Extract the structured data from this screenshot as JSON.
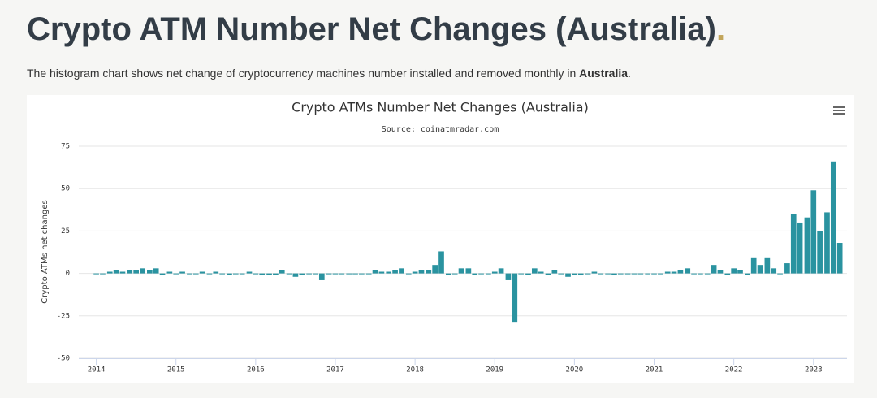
{
  "header": {
    "title": "Crypto ATM Number Net Changes (Australia)",
    "title_dot": ".",
    "description": [
      "The histogram chart shows net change of cryptocurrency machines number installed and removed monthly in ",
      "Australia",
      "."
    ]
  },
  "chart_data": {
    "type": "bar",
    "title": "Crypto ATMs Number Net Changes (Australia)",
    "subtitle": "Source: coinatmradar.com",
    "y_label": "Crypto ATMs net changes",
    "color": "#2a93a0",
    "grid": true,
    "xlim": [
      2013.78,
      2023.42
    ],
    "xticks": [
      2014,
      2015,
      2016,
      2017,
      2018,
      2019,
      2020,
      2021,
      2022,
      2023
    ],
    "ylim": [
      -50,
      75
    ],
    "yticks": [
      -50,
      -25,
      0,
      25,
      50,
      75
    ],
    "x": [
      2014,
      2014.08,
      2014.17,
      2014.25,
      2014.33,
      2014.42,
      2014.5,
      2014.58,
      2014.67,
      2014.75,
      2014.83,
      2014.92,
      2015,
      2015.08,
      2015.17,
      2015.25,
      2015.33,
      2015.42,
      2015.5,
      2015.58,
      2015.67,
      2015.75,
      2015.83,
      2015.92,
      2016,
      2016.08,
      2016.17,
      2016.25,
      2016.33,
      2016.42,
      2016.5,
      2016.58,
      2016.67,
      2016.75,
      2016.83,
      2016.92,
      2017,
      2017.08,
      2017.17,
      2017.25,
      2017.33,
      2017.42,
      2017.5,
      2017.58,
      2017.67,
      2017.75,
      2017.83,
      2017.92,
      2018,
      2018.08,
      2018.17,
      2018.25,
      2018.33,
      2018.42,
      2018.5,
      2018.58,
      2018.67,
      2018.75,
      2018.83,
      2018.92,
      2019,
      2019.08,
      2019.17,
      2019.25,
      2019.33,
      2019.42,
      2019.5,
      2019.58,
      2019.67,
      2019.75,
      2019.83,
      2019.92,
      2020,
      2020.08,
      2020.17,
      2020.25,
      2020.33,
      2020.42,
      2020.5,
      2020.58,
      2020.67,
      2020.75,
      2020.83,
      2020.92,
      2021,
      2021.08,
      2021.17,
      2021.25,
      2021.33,
      2021.42,
      2021.5,
      2021.58,
      2021.67,
      2021.75,
      2021.83,
      2021.92,
      2022,
      2022.08,
      2022.17,
      2022.25,
      2022.33,
      2022.42,
      2022.5,
      2022.58,
      2022.67,
      2022.75,
      2022.83,
      2022.92,
      2023,
      2023.08,
      2023.17,
      2023.25,
      2023.33
    ],
    "values": [
      0,
      0,
      1,
      2,
      1,
      2,
      2,
      3,
      2,
      3,
      -1,
      1,
      0,
      1,
      0,
      0,
      1,
      0,
      1,
      0,
      -1,
      0,
      0,
      1,
      0,
      -1,
      -1,
      -1,
      2,
      0,
      -2,
      -1,
      0,
      0,
      -4,
      0,
      0,
      0,
      0,
      0,
      0,
      0,
      2,
      1,
      1,
      2,
      3,
      0,
      1,
      2,
      2,
      5,
      13,
      -1,
      0,
      3,
      3,
      -1,
      0,
      0,
      1,
      3,
      -4,
      -29,
      0,
      -1,
      3,
      1,
      -1,
      2,
      0,
      -2,
      -1,
      -1,
      0,
      1,
      0,
      0,
      -1,
      0,
      0,
      0,
      0,
      0,
      0,
      0,
      1,
      1,
      2,
      3,
      0,
      0,
      0,
      5,
      2,
      -1,
      3,
      2,
      -1,
      9,
      5,
      9,
      3,
      0,
      6,
      35,
      30,
      33,
      49,
      25,
      36,
      66,
      18
    ]
  }
}
